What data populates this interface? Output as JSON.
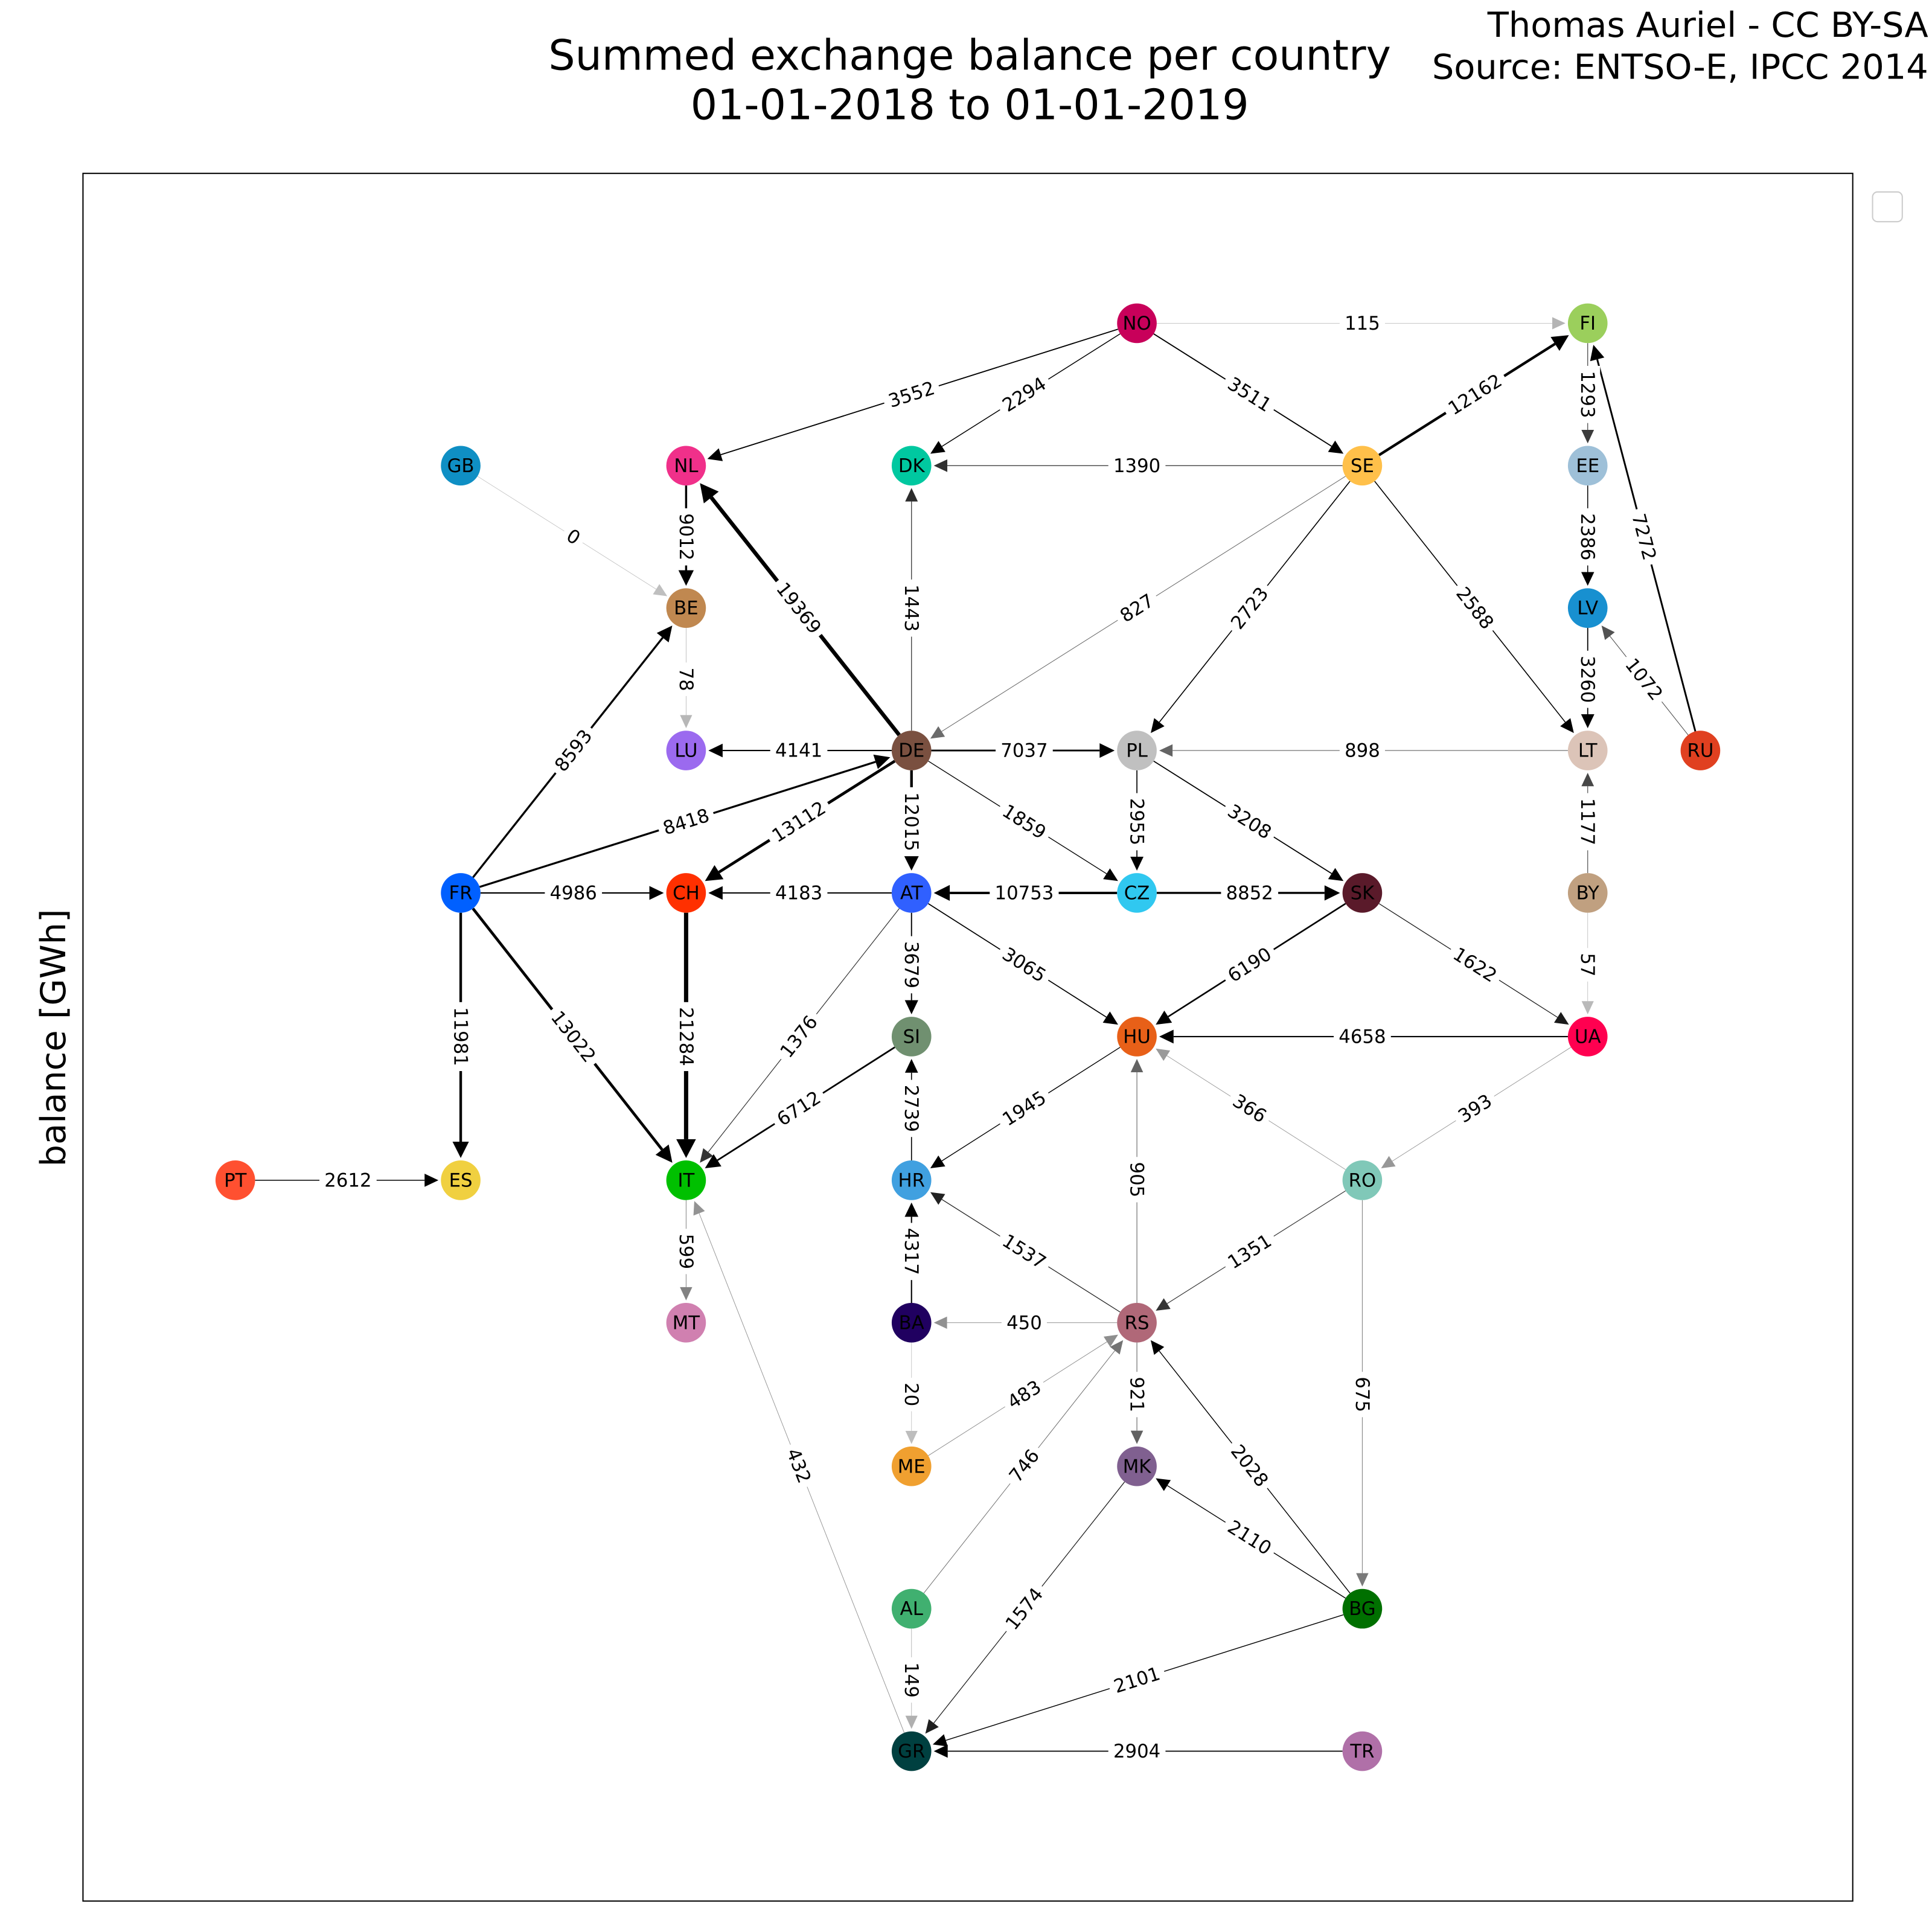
{
  "title": [
    "Summed exchange balance per country",
    "01-01-2018 to 01-01-2019"
  ],
  "credit": [
    "Thomas Auriel - CC BY-SA",
    "Source: ENTSO-E, IPCC 2014"
  ],
  "axis_label": "balance [GWh]",
  "nodes": [
    {
      "label": "NO",
      "color": "#c8005a"
    },
    {
      "label": "FI",
      "color": "#9bcf5c"
    },
    {
      "label": "GB",
      "color": "#0f8fc4"
    },
    {
      "label": "NL",
      "color": "#f0308a"
    },
    {
      "label": "DK",
      "color": "#00c8a0"
    },
    {
      "label": "SE",
      "color": "#ffc04a"
    },
    {
      "label": "EE",
      "color": "#9ec0d8"
    },
    {
      "label": "BE",
      "color": "#c08850"
    },
    {
      "label": "LV",
      "color": "#1890d0"
    },
    {
      "label": "LU",
      "color": "#9b6aef"
    },
    {
      "label": "DE",
      "color": "#7a5040"
    },
    {
      "label": "PL",
      "color": "#c0c0c0"
    },
    {
      "label": "LT",
      "color": "#dcc4b8"
    },
    {
      "label": "RU",
      "color": "#e04020"
    },
    {
      "label": "FR",
      "color": "#0060ff"
    },
    {
      "label": "CH",
      "color": "#ff3000"
    },
    {
      "label": "AT",
      "color": "#3060ff"
    },
    {
      "label": "CZ",
      "color": "#30c8f0"
    },
    {
      "label": "SK",
      "color": "#5a1a2a"
    },
    {
      "label": "BY",
      "color": "#c0a080"
    },
    {
      "label": "SI",
      "color": "#709070"
    },
    {
      "label": "HU",
      "color": "#e86018"
    },
    {
      "label": "UA",
      "color": "#ff0050"
    },
    {
      "label": "PT",
      "color": "#ff5030"
    },
    {
      "label": "ES",
      "color": "#f0d040"
    },
    {
      "label": "IT",
      "color": "#00c000"
    },
    {
      "label": "HR",
      "color": "#40a0e0"
    },
    {
      "label": "RO",
      "color": "#80c8b8"
    },
    {
      "label": "MT",
      "color": "#d080b0"
    },
    {
      "label": "BA",
      "color": "#200060"
    },
    {
      "label": "RS",
      "color": "#b06878"
    },
    {
      "label": "ME",
      "color": "#f0a030"
    },
    {
      "label": "MK",
      "color": "#806090"
    },
    {
      "label": "AL",
      "color": "#40b070"
    },
    {
      "label": "BG",
      "color": "#007000"
    },
    {
      "label": "GR",
      "color": "#004040"
    },
    {
      "label": "TR",
      "color": "#b070a8"
    }
  ],
  "edges": [
    {
      "from": "NO",
      "to": "FI",
      "value": 115
    },
    {
      "from": "NO",
      "to": "NL",
      "value": 3552
    },
    {
      "from": "NO",
      "to": "DK",
      "value": 2294
    },
    {
      "from": "NO",
      "to": "SE",
      "value": 3511
    },
    {
      "from": "SE",
      "to": "FI",
      "value": 12162
    },
    {
      "from": "FI",
      "to": "EE",
      "value": 1293
    },
    {
      "from": "SE",
      "to": "DK",
      "value": 1390
    },
    {
      "from": "EE",
      "to": "LV",
      "value": 2386
    },
    {
      "from": "RU",
      "to": "FI",
      "value": 7272
    },
    {
      "from": "GB",
      "to": "BE",
      "value": 0
    },
    {
      "from": "NL",
      "to": "BE",
      "value": 9012
    },
    {
      "from": "DE",
      "to": "NL",
      "value": 19369
    },
    {
      "from": "DE",
      "to": "DK",
      "value": 1443
    },
    {
      "from": "SE",
      "to": "DE",
      "value": 827
    },
    {
      "from": "SE",
      "to": "PL",
      "value": 2723
    },
    {
      "from": "SE",
      "to": "LT",
      "value": 2588
    },
    {
      "from": "LV",
      "to": "LT",
      "value": 3260
    },
    {
      "from": "RU",
      "to": "LV",
      "value": 1072
    },
    {
      "from": "BE",
      "to": "LU",
      "value": 78
    },
    {
      "from": "DE",
      "to": "LU",
      "value": 4141
    },
    {
      "from": "DE",
      "to": "PL",
      "value": 7037
    },
    {
      "from": "LT",
      "to": "PL",
      "value": 898
    },
    {
      "from": "FR",
      "to": "BE",
      "value": 8593
    },
    {
      "from": "FR",
      "to": "DE",
      "value": 8418
    },
    {
      "from": "DE",
      "to": "CH",
      "value": 13112
    },
    {
      "from": "DE",
      "to": "AT",
      "value": 12015
    },
    {
      "from": "DE",
      "to": "CZ",
      "value": 1859
    },
    {
      "from": "PL",
      "to": "CZ",
      "value": 2955
    },
    {
      "from": "PL",
      "to": "SK",
      "value": 3208
    },
    {
      "from": "BY",
      "to": "LT",
      "value": 1177
    },
    {
      "from": "FR",
      "to": "CH",
      "value": 4986
    },
    {
      "from": "AT",
      "to": "CH",
      "value": 4183
    },
    {
      "from": "CZ",
      "to": "AT",
      "value": 10753
    },
    {
      "from": "CZ",
      "to": "SK",
      "value": 8852
    },
    {
      "from": "SK",
      "to": "UA",
      "value": 1622
    },
    {
      "from": "BY",
      "to": "UA",
      "value": 57
    },
    {
      "from": "AT",
      "to": "SI",
      "value": 3679
    },
    {
      "from": "AT",
      "to": "HU",
      "value": 3065
    },
    {
      "from": "SK",
      "to": "HU",
      "value": 6190
    },
    {
      "from": "UA",
      "to": "HU",
      "value": 4658
    },
    {
      "from": "AT",
      "to": "IT",
      "value": 1376
    },
    {
      "from": "CH",
      "to": "IT",
      "value": 21284
    },
    {
      "from": "FR",
      "to": "ES",
      "value": 11981
    },
    {
      "from": "FR",
      "to": "IT",
      "value": 13022
    },
    {
      "from": "SI",
      "to": "IT",
      "value": 6712
    },
    {
      "from": "HR",
      "to": "SI",
      "value": 2739
    },
    {
      "from": "HU",
      "to": "HR",
      "value": 1945
    },
    {
      "from": "RO",
      "to": "HU",
      "value": 366
    },
    {
      "from": "UA",
      "to": "RO",
      "value": 393
    },
    {
      "from": "PT",
      "to": "ES",
      "value": 2612
    },
    {
      "from": "IT",
      "to": "MT",
      "value": 599
    },
    {
      "from": "BA",
      "to": "HR",
      "value": 4317
    },
    {
      "from": "RS",
      "to": "HR",
      "value": 1537
    },
    {
      "from": "RS",
      "to": "HU",
      "value": 905
    },
    {
      "from": "RO",
      "to": "RS",
      "value": 1351
    },
    {
      "from": "RO",
      "to": "BG",
      "value": 675
    },
    {
      "from": "RS",
      "to": "BA",
      "value": 450
    },
    {
      "from": "BA",
      "to": "ME",
      "value": 20
    },
    {
      "from": "ME",
      "to": "RS",
      "value": 483
    },
    {
      "from": "RS",
      "to": "MK",
      "value": 921
    },
    {
      "from": "GR",
      "to": "IT",
      "value": 432
    },
    {
      "from": "AL",
      "to": "RS",
      "value": 746
    },
    {
      "from": "BG",
      "to": "RS",
      "value": 2028
    },
    {
      "from": "BG",
      "to": "MK",
      "value": 2110
    },
    {
      "from": "AL",
      "to": "GR",
      "value": 149
    },
    {
      "from": "MK",
      "to": "GR",
      "value": 1574
    },
    {
      "from": "BG",
      "to": "GR",
      "value": 2101
    },
    {
      "from": "TR",
      "to": "GR",
      "value": 2904
    }
  ]
}
